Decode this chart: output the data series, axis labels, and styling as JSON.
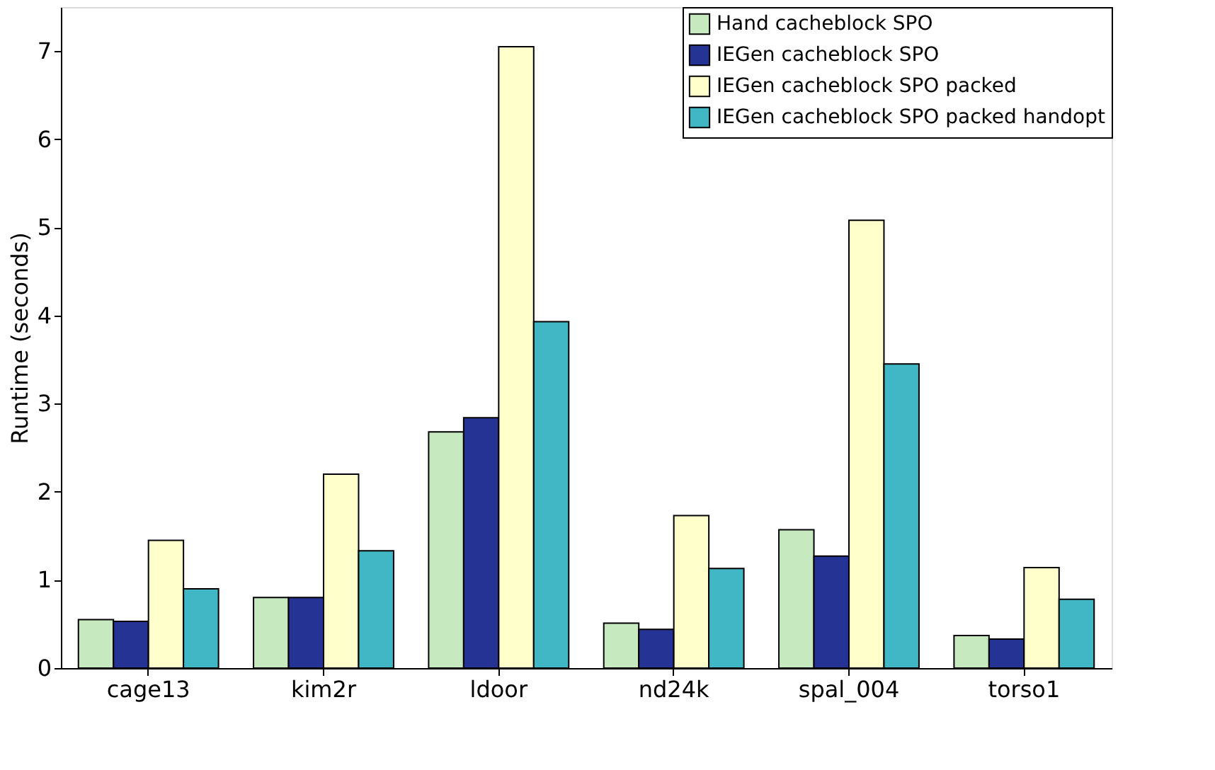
{
  "chart_data": {
    "type": "bar",
    "ylabel": "Runtime (seconds)",
    "categories": [
      "cage13",
      "kim2r",
      "ldoor",
      "nd24k",
      "spal_004",
      "torso1"
    ],
    "series": [
      {
        "name": "Hand cacheblock SPO",
        "color": "#c7e9c0",
        "values": [
          0.55,
          0.8,
          2.68,
          0.51,
          1.57,
          0.37
        ]
      },
      {
        "name": "IEGen cacheblock SPO",
        "color": "#253494",
        "values": [
          0.53,
          0.8,
          2.84,
          0.44,
          1.27,
          0.33
        ]
      },
      {
        "name": "IEGen cacheblock SPO packed",
        "color": "#ffffcc",
        "values": [
          1.45,
          2.2,
          7.05,
          1.73,
          5.08,
          1.14
        ]
      },
      {
        "name": "IEGen cacheblock SPO packed handopt",
        "color": "#41b6c4",
        "values": [
          0.9,
          1.33,
          3.93,
          1.13,
          3.45,
          0.78
        ]
      }
    ],
    "ylim": [
      0,
      7.5
    ],
    "yticks": [
      0,
      1,
      2,
      3,
      4,
      5,
      6,
      7
    ],
    "grid": false,
    "legend": "top right"
  }
}
